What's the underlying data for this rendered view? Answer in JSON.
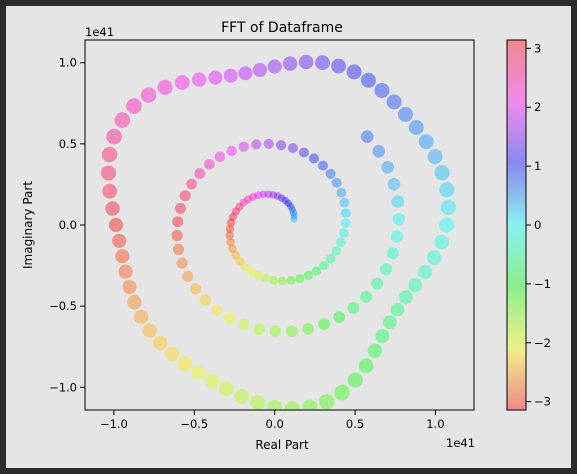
{
  "chart_data": {
    "type": "scatter",
    "title": "FFT of Dataframe",
    "xlabel": "Real Part",
    "ylabel": "Imaginary Part",
    "x_offset_label": "1e41",
    "y_offset_label": "1e41",
    "xlim": [
      -1.18,
      1.24
    ],
    "ylim": [
      -1.14,
      1.14
    ],
    "xticks": [
      -1.0,
      -0.5,
      0.0,
      0.5,
      1.0
    ],
    "xtick_labels": [
      "−1.0",
      "−0.5",
      "0.0",
      "0.5",
      "1.0"
    ],
    "yticks": [
      -1.0,
      -0.5,
      0.0,
      0.5,
      1.0
    ],
    "ytick_labels": [
      "−1.0",
      "−0.5",
      "0.0",
      "0.5",
      "1.0"
    ],
    "grid": false,
    "colormap": "hsv",
    "color_value": "phase angle (radians)",
    "colorbar": {
      "range": [
        -3.14159,
        3.14159
      ],
      "ticks": [
        -3,
        -2,
        -1,
        0,
        1,
        2,
        3
      ],
      "tick_labels": [
        "−3",
        "−2",
        "−1",
        "0",
        "1",
        "2",
        "3"
      ]
    },
    "point_alpha": 0.4,
    "marker_size_encodes": "magnitude",
    "outer_ring_radius": 1.05,
    "outer_ring_points": 64,
    "inner_spiral_points": 90,
    "inner_spiral_max_radius": 0.78,
    "background_color": "#e5e5e5",
    "frame_color": "#2b2b2b"
  }
}
